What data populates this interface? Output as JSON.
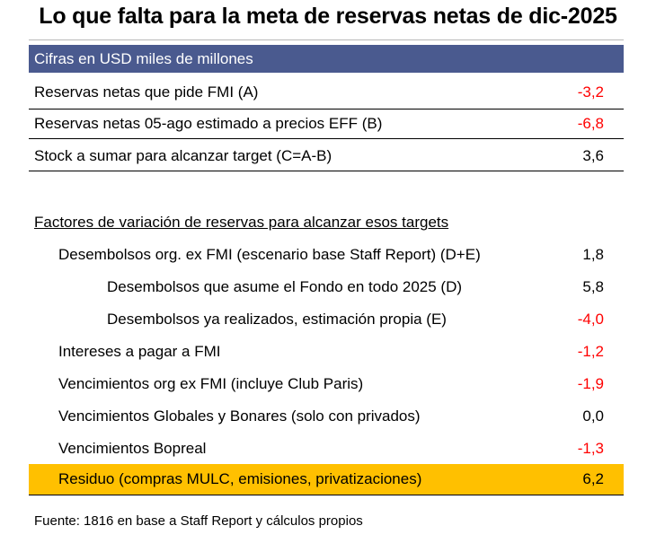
{
  "title": "Lo que falta para la meta de reservas netas de dic-2025",
  "units_header": "Cifras en USD miles de millones",
  "top_rows": [
    {
      "label": "Reservas netas que pide FMI (A)",
      "value": "-3,2"
    },
    {
      "label": "Reservas netas 05-ago estimado a precios EFF (B)",
      "value": "-6,8"
    },
    {
      "label": "Stock a sumar para alcanzar target (C=A-B)",
      "value": "3,6"
    }
  ],
  "section_title": "Factores de variación de reservas para alcanzar esos targets",
  "factor_rows": [
    {
      "label": "Desembolsos org. ex FMI (escenario base Staff Report) (D+E)",
      "value": "1,8"
    },
    {
      "label": "Desembolsos que asume el Fondo en todo 2025 (D)",
      "value": "5,8"
    },
    {
      "label": "Desembolsos ya realizados, estimación propia (E)",
      "value": "-4,0"
    },
    {
      "label": "Intereses a pagar a FMI",
      "value": "-1,2"
    },
    {
      "label": "Vencimientos org ex FMI (incluye Club Paris)",
      "value": "-1,9"
    },
    {
      "label": "Vencimientos Globales y Bonares (solo con privados)",
      "value": "0,0"
    },
    {
      "label": "Vencimientos Bopreal",
      "value": "-1,3"
    },
    {
      "label": "Residuo (compras MULC, emisiones, privatizaciones)",
      "value": "6,2"
    }
  ],
  "source": "Fuente: 1816 en base a Staff Report y cálculos propios",
  "colors": {
    "header_bg": "#4a5a8f",
    "negative": "#ff0000",
    "highlight": "#ffc000"
  }
}
